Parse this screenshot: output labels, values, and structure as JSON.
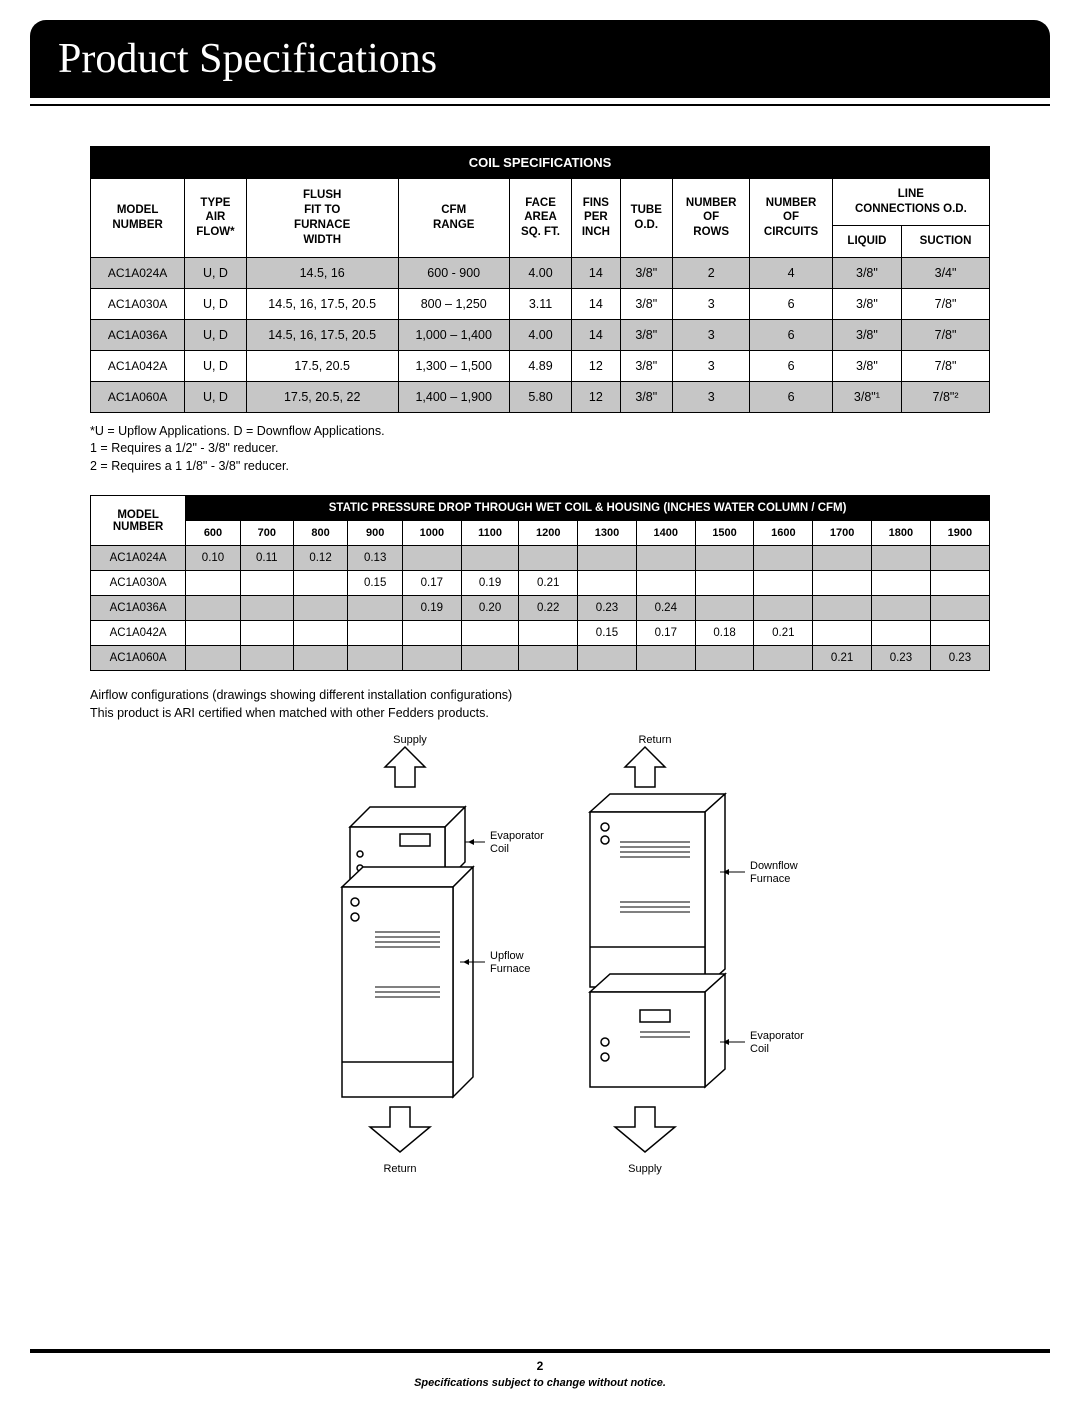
{
  "pageTitle": "Product Specifications",
  "coil": {
    "title": "COIL SPECIFICATIONS",
    "headers": {
      "model": "MODEL\nNUMBER",
      "typeAir": "TYPE\nAIR\nFLOW*",
      "flush": "FLUSH\nFIT TO\nFURNACE\nWIDTH",
      "cfm": "CFM\nRANGE",
      "faceArea": "FACE\nAREA\nSQ. FT.",
      "fins": "FINS\nPER\nINCH",
      "tube": "TUBE\nO.D.",
      "rows": "NUMBER\nOF\nROWS",
      "circuits": "NUMBER\nOF\nCIRCUITS",
      "line": "LINE\nCONNECTIONS O.D.",
      "liquid": "LIQUID",
      "suction": "SUCTION"
    },
    "rows": [
      {
        "gray": true,
        "c": [
          "AC1A024A",
          "U, D",
          "14.5, 16",
          "600 - 900",
          "4.00",
          "14",
          "3/8\"",
          "2",
          "4",
          "3/8\"",
          "3/4\""
        ]
      },
      {
        "gray": false,
        "c": [
          "AC1A030A",
          "U, D",
          "14.5, 16, 17.5, 20.5",
          "800 – 1,250",
          "3.11",
          "14",
          "3/8\"",
          "3",
          "6",
          "3/8\"",
          "7/8\""
        ]
      },
      {
        "gray": true,
        "c": [
          "AC1A036A",
          "U, D",
          "14.5, 16, 17.5, 20.5",
          "1,000 – 1,400",
          "4.00",
          "14",
          "3/8\"",
          "3",
          "6",
          "3/8\"",
          "7/8\""
        ]
      },
      {
        "gray": false,
        "c": [
          "AC1A042A",
          "U, D",
          "17.5, 20.5",
          "1,300 – 1,500",
          "4.89",
          "12",
          "3/8\"",
          "3",
          "6",
          "3/8\"",
          "7/8\""
        ]
      },
      {
        "gray": true,
        "c": [
          "AC1A060A",
          "U, D",
          "17.5, 20.5, 22",
          "1,400 – 1,900",
          "5.80",
          "12",
          "3/8\"",
          "3",
          "6",
          "3/8\"¹",
          "7/8\"²"
        ]
      }
    ]
  },
  "notes": {
    "l1": "*U = Upflow Applications. D = Downflow Applications.",
    "l2": "1 = Requires a 1/2\" - 3/8\" reducer.",
    "l3": "2 = Requires a 1 1/8\" - 3/8\" reducer."
  },
  "pressure": {
    "title": "STATIC PRESSURE DROP THROUGH WET COIL & HOUSING (INCHES WATER COLUMN / CFM)",
    "modelHeader": "MODEL\nNUMBER",
    "cfm": [
      "600",
      "700",
      "800",
      "900",
      "1000",
      "1100",
      "1200",
      "1300",
      "1400",
      "1500",
      "1600",
      "1700",
      "1800",
      "1900"
    ],
    "rows": [
      {
        "gray": true,
        "model": "AC1A024A",
        "v": [
          "0.10",
          "0.11",
          "0.12",
          "0.13",
          "",
          "",
          "",
          "",
          "",
          "",
          "",
          "",
          "",
          ""
        ]
      },
      {
        "gray": false,
        "model": "AC1A030A",
        "v": [
          "",
          "",
          "",
          "0.15",
          "0.17",
          "0.19",
          "0.21",
          "",
          "",
          "",
          "",
          "",
          "",
          ""
        ]
      },
      {
        "gray": true,
        "model": "AC1A036A",
        "v": [
          "",
          "",
          "",
          "",
          "0.19",
          "0.20",
          "0.22",
          "0.23",
          "0.24",
          "",
          "",
          "",
          "",
          ""
        ]
      },
      {
        "gray": false,
        "model": "AC1A042A",
        "v": [
          "",
          "",
          "",
          "",
          "",
          "",
          "",
          "0.15",
          "0.17",
          "0.18",
          "0.21",
          "",
          "",
          ""
        ]
      },
      {
        "gray": true,
        "model": "AC1A060A",
        "v": [
          "",
          "",
          "",
          "",
          "",
          "",
          "",
          "",
          "",
          "",
          "",
          "0.21",
          "0.23",
          "0.23"
        ]
      }
    ]
  },
  "afterNotes": {
    "l1": "Airflow configurations (drawings showing different installation configurations)",
    "l2": "This product is ARI certified when matched with other Fedders products."
  },
  "diagramLabels": {
    "supply": "Supply",
    "return": "Return",
    "evapCoil": "Evaporator\nCoil",
    "upflow": "Upflow\nFurnace",
    "downflow": "Downflow\nFurnace"
  },
  "footer": {
    "pageNum": "2",
    "disclaimer": "Specifications subject to change without notice."
  },
  "colors": {
    "black": "#000000",
    "white": "#ffffff",
    "gray": "#c6c6c6"
  }
}
